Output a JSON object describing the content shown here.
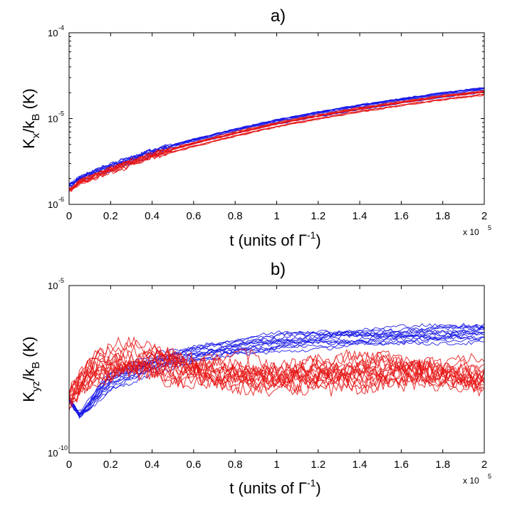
{
  "chart_data": [
    {
      "type": "line",
      "title": "a)",
      "xlabel": "t (units of Γ",
      "xlabel_sup": "-1",
      "xlabel_close": ")",
      "ylabel": "K",
      "ylabel_sub": "x",
      "ylabel_mid": "/k",
      "ylabel_sub2": "B",
      "ylabel_tail": " (K)",
      "xlim": [
        0,
        2
      ],
      "ylim_log10": [
        -6,
        -4
      ],
      "x_exponent_label": "x 10",
      "x_exponent": "5",
      "x_ticks": [
        "0",
        "0.2",
        "0.4",
        "0.6",
        "0.8",
        "1",
        "1.2",
        "1.4",
        "1.6",
        "1.8",
        "2"
      ],
      "y_ticks": [
        {
          "base": "10",
          "exp": "-4",
          "value_log10": -4
        },
        {
          "base": "10",
          "exp": "-5",
          "value_log10": -5
        },
        {
          "base": "10",
          "exp": "-6",
          "value_log10": -6
        }
      ],
      "x": [
        0.01,
        0.05,
        0.1,
        0.2,
        0.4,
        0.6,
        0.8,
        1.0,
        1.2,
        1.4,
        1.6,
        1.8,
        2.0
      ],
      "series": [
        {
          "name": "blue trajectories (upper band)",
          "color": "#1414e6",
          "count": 10,
          "values": [
            1.7e-06,
            2e-06,
            2.2e-06,
            2.7e-06,
            4e-06,
            5.4e-06,
            7.1e-06,
            9.1e-06,
            1.12e-05,
            1.35e-05,
            1.6e-05,
            1.88e-05,
            2.15e-05
          ]
        },
        {
          "name": "red trajectories (lower band)",
          "color": "#e61414",
          "count": 12,
          "values": [
            1.5e-06,
            1.8e-06,
            2e-06,
            2.5e-06,
            3.7e-06,
            5e-06,
            6.6e-06,
            8.5e-06,
            1.05e-05,
            1.27e-05,
            1.5e-05,
            1.76e-05,
            2e-05
          ]
        }
      ]
    },
    {
      "type": "line",
      "title": "b)",
      "xlabel": "t (units of Γ",
      "xlabel_sup": "-1",
      "xlabel_close": ")",
      "ylabel": "K",
      "ylabel_sub": "yz",
      "ylabel_mid": "/k",
      "ylabel_sub2": "B",
      "ylabel_tail": " (K)",
      "xlim": [
        0,
        2
      ],
      "ylim_log10": [
        -10,
        -5
      ],
      "x_exponent_label": "x 10",
      "x_exponent": "5",
      "x_ticks": [
        "0",
        "0.2",
        "0.4",
        "0.6",
        "0.8",
        "1",
        "1.2",
        "1.4",
        "1.6",
        "1.8",
        "2"
      ],
      "y_ticks": [
        {
          "base": "10",
          "exp": "-5",
          "value_log10": -5
        },
        {
          "base": "10",
          "exp": "-10",
          "value_log10": -10
        }
      ],
      "x": [
        0.0,
        0.05,
        0.1,
        0.15,
        0.2,
        0.4,
        0.6,
        0.8,
        1.0,
        1.2,
        1.4,
        1.6,
        1.8,
        2.0
      ],
      "series": [
        {
          "name": "blue trajectories (rising)",
          "color": "#1414e6",
          "count": 14,
          "values_log10": [
            -8.4,
            -8.9,
            -8.6,
            -8.2,
            -7.9,
            -7.4,
            -7.1,
            -6.9,
            -6.75,
            -6.65,
            -6.6,
            -6.55,
            -6.5,
            -6.45
          ]
        },
        {
          "name": "red trajectories (fluctuating)",
          "color": "#e61414",
          "count": 16,
          "values_log10": [
            -8.4,
            -8.0,
            -7.6,
            -7.4,
            -7.3,
            -7.2,
            -7.5,
            -7.6,
            -7.7,
            -7.6,
            -7.55,
            -7.5,
            -7.6,
            -7.7
          ]
        }
      ]
    }
  ]
}
